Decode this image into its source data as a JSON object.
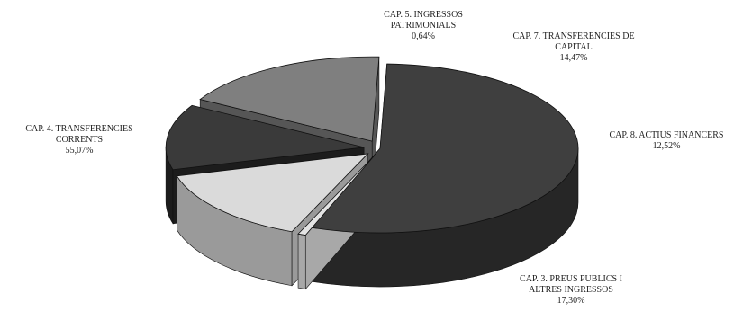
{
  "chart_data": {
    "type": "pie",
    "title": "",
    "slices": [
      {
        "label_lines": [
          "CAP. 4. TRANSFERENCIES",
          "CORRENTS"
        ],
        "value_text": "55,07%",
        "value": 55.07,
        "color": "#3f3f3f",
        "side_color": "#262626",
        "explode": 0
      },
      {
        "label_lines": [
          "CAP. 5. INGRESSOS",
          "PATRIMONIALS"
        ],
        "value_text": "0,64%",
        "value": 0.64,
        "color": "#e4e4e4",
        "side_color": "#a8a8a8",
        "explode": 18
      },
      {
        "label_lines": [
          "CAP. 7. TRANSFERENCIES DE",
          "CAPITAL"
        ],
        "value_text": "14,47%",
        "value": 14.47,
        "color": "#dadada",
        "side_color": "#9a9a9a",
        "explode": 18
      },
      {
        "label_lines": [
          "CAP. 8. ACTIUS FINANCERS"
        ],
        "value_text": "12,52%",
        "value": 12.52,
        "color": "#3a3a3a",
        "side_color": "#1c1c1c",
        "explode": 18
      },
      {
        "label_lines": [
          "CAP. 3. PREUS PUBLICS I",
          "ALTRES INGRESSOS"
        ],
        "value_text": "17,30%",
        "value": 17.3,
        "color": "#7f7f7f",
        "side_color": "#565656",
        "explode": 18
      }
    ]
  }
}
